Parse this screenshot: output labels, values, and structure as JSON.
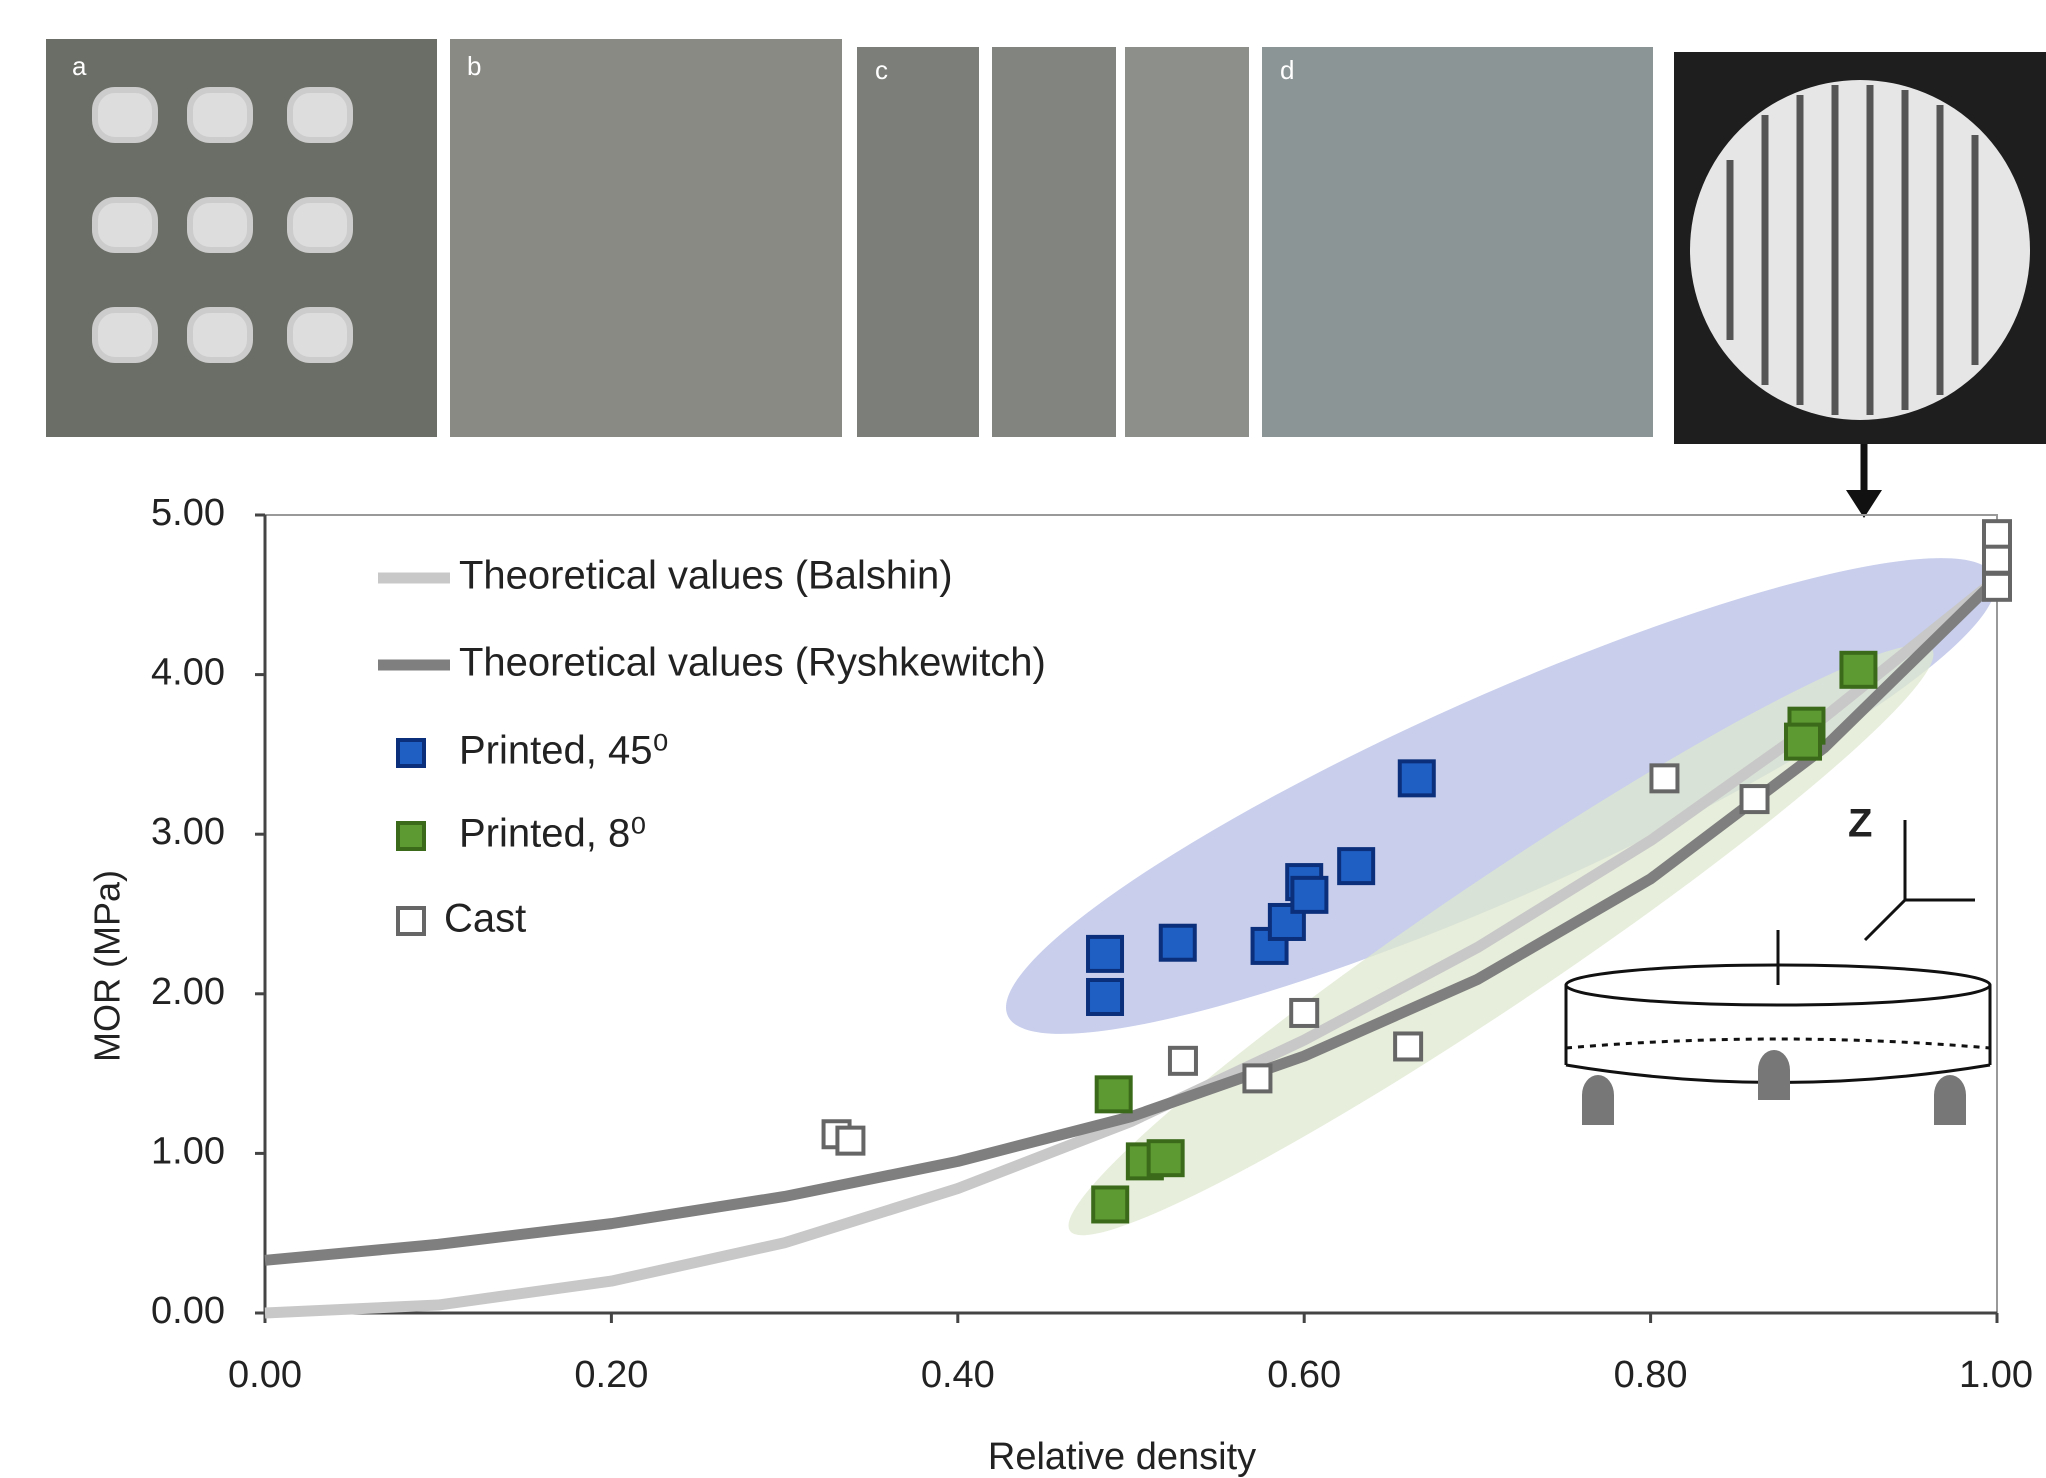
{
  "chart_data": {
    "type": "scatter",
    "panel_labels": [
      "a",
      "b",
      "c",
      "d"
    ],
    "xlabel": "Relative density",
    "ylabel": "MOR (MPa)",
    "xlim": [
      0,
      1
    ],
    "ylim": [
      0,
      5
    ],
    "xticks": [
      {
        "value": 0,
        "label": "0.00"
      },
      {
        "value": 0.2,
        "label": "0.20"
      },
      {
        "value": 0.4,
        "label": "0.40"
      },
      {
        "value": 0.6,
        "label": "0.60"
      },
      {
        "value": 0.8,
        "label": "0.80"
      },
      {
        "value": 1,
        "label": "1.00"
      }
    ],
    "yticks": [
      {
        "value": 0,
        "label": "0.00"
      },
      {
        "value": 1,
        "label": "1.00"
      },
      {
        "value": 2,
        "label": "2.00"
      },
      {
        "value": 3,
        "label": "3.00"
      },
      {
        "value": 4,
        "label": "4.00"
      },
      {
        "value": 5,
        "label": "5.00"
      }
    ],
    "annotation": "Z",
    "series": [
      {
        "name": "Theoretical values (Balshin)",
        "mode": "line",
        "color": "#c8c8c8",
        "x": [
          0,
          0.1,
          0.2,
          0.3,
          0.4,
          0.5,
          0.6,
          0.7,
          0.8,
          0.9,
          1.0
        ],
        "values": [
          0,
          0.05,
          0.2,
          0.44,
          0.78,
          1.2,
          1.71,
          2.29,
          2.96,
          3.73,
          4.6
        ]
      },
      {
        "name": "Theoretical values (Ryshkewitch)",
        "mode": "line",
        "color": "#7f7f7f",
        "x": [
          0,
          0.1,
          0.2,
          0.3,
          0.4,
          0.5,
          0.6,
          0.7,
          0.8,
          0.9,
          1.0
        ],
        "values": [
          0.33,
          0.43,
          0.56,
          0.73,
          0.95,
          1.23,
          1.61,
          2.09,
          2.72,
          3.54,
          4.6
        ]
      },
      {
        "name": "Printed, 45⁰",
        "mode": "markers",
        "color": "#1f5fc4",
        "edgecolor": "#0b2f7a",
        "x": [
          0.485,
          0.485,
          0.527,
          0.58,
          0.59,
          0.6,
          0.603,
          0.63,
          0.665
        ],
        "values": [
          2.25,
          1.98,
          2.32,
          2.3,
          2.45,
          2.7,
          2.62,
          2.8,
          3.35
        ]
      },
      {
        "name": "Printed, 8⁰",
        "mode": "markers",
        "color": "#5e9a32",
        "edgecolor": "#3b6a1a",
        "x": [
          0.49,
          0.488,
          0.508,
          0.52,
          0.89,
          0.888,
          0.92
        ],
        "values": [
          1.37,
          0.68,
          0.95,
          0.97,
          3.68,
          3.58,
          4.03
        ]
      },
      {
        "name": "Cast",
        "mode": "markers",
        "color": "#ffffff",
        "edgecolor": "#666666",
        "x": [
          0.33,
          0.338,
          0.53,
          0.573,
          0.6,
          0.66,
          0.808,
          0.86,
          1.0,
          1.0,
          1.0
        ],
        "values": [
          1.12,
          1.08,
          1.58,
          1.47,
          1.88,
          1.67,
          3.35,
          3.22,
          4.88,
          4.72,
          4.55
        ]
      }
    ]
  }
}
